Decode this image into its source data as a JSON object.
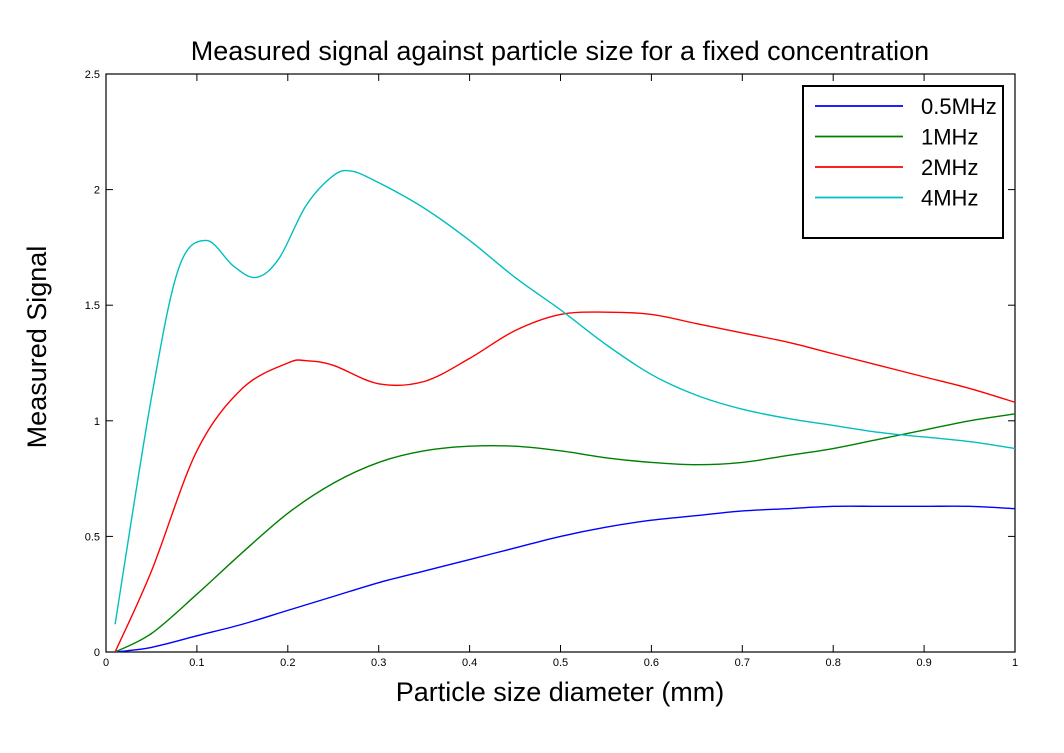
{
  "chart_data": {
    "type": "line",
    "title": "Measured signal against particle size for a fixed concentration",
    "xlabel": "Particle size diameter (mm)",
    "ylabel": "Measured Signal",
    "xlim": [
      0,
      1
    ],
    "ylim": [
      0,
      2.5
    ],
    "x_ticks": [
      0,
      0.1,
      0.2,
      0.3,
      0.4,
      0.5,
      0.6,
      0.7,
      0.8,
      0.9,
      1
    ],
    "x_tick_labels": [
      "0",
      "0.1",
      "0.2",
      "0.3",
      "0.4",
      "0.5",
      "0.6",
      "0.7",
      "0.8",
      "0.9",
      "1"
    ],
    "y_ticks": [
      0,
      0.5,
      1,
      1.5,
      2,
      2.5
    ],
    "y_tick_labels": [
      "0",
      "0.5",
      "1",
      "1.5",
      "2",
      "2.5"
    ],
    "grid": false,
    "legend_position": "top-right",
    "series": [
      {
        "name": "0.5MHz",
        "color": "#0000ff",
        "x": [
          0.01,
          0.05,
          0.1,
          0.15,
          0.2,
          0.25,
          0.3,
          0.35,
          0.4,
          0.45,
          0.5,
          0.55,
          0.6,
          0.65,
          0.7,
          0.75,
          0.8,
          0.85,
          0.9,
          0.95,
          1.0
        ],
        "y": [
          0.0,
          0.02,
          0.07,
          0.12,
          0.18,
          0.24,
          0.3,
          0.35,
          0.4,
          0.45,
          0.5,
          0.54,
          0.57,
          0.59,
          0.61,
          0.62,
          0.63,
          0.63,
          0.63,
          0.63,
          0.62
        ]
      },
      {
        "name": "1MHz",
        "color": "#008000",
        "x": [
          0.01,
          0.05,
          0.1,
          0.15,
          0.2,
          0.25,
          0.3,
          0.35,
          0.4,
          0.45,
          0.5,
          0.55,
          0.6,
          0.65,
          0.7,
          0.75,
          0.8,
          0.85,
          0.9,
          0.95,
          1.0
        ],
        "y": [
          0.0,
          0.08,
          0.25,
          0.43,
          0.6,
          0.73,
          0.82,
          0.87,
          0.89,
          0.89,
          0.87,
          0.84,
          0.82,
          0.81,
          0.82,
          0.85,
          0.88,
          0.92,
          0.96,
          1.0,
          1.03
        ]
      },
      {
        "name": "2MHz",
        "color": "#ff0000",
        "x": [
          0.01,
          0.05,
          0.1,
          0.15,
          0.2,
          0.22,
          0.25,
          0.3,
          0.35,
          0.4,
          0.45,
          0.5,
          0.55,
          0.6,
          0.65,
          0.7,
          0.75,
          0.8,
          0.85,
          0.9,
          0.95,
          1.0
        ],
        "y": [
          0.0,
          0.35,
          0.87,
          1.14,
          1.25,
          1.26,
          1.24,
          1.16,
          1.17,
          1.27,
          1.39,
          1.46,
          1.47,
          1.46,
          1.42,
          1.38,
          1.34,
          1.29,
          1.24,
          1.19,
          1.14,
          1.08
        ]
      },
      {
        "name": "4MHz",
        "color": "#00bfbf",
        "x": [
          0.01,
          0.05,
          0.08,
          0.11,
          0.14,
          0.165,
          0.19,
          0.22,
          0.25,
          0.27,
          0.3,
          0.35,
          0.4,
          0.45,
          0.5,
          0.55,
          0.6,
          0.65,
          0.7,
          0.75,
          0.8,
          0.85,
          0.9,
          0.95,
          1.0
        ],
        "y": [
          0.12,
          1.1,
          1.66,
          1.78,
          1.67,
          1.62,
          1.7,
          1.93,
          2.06,
          2.08,
          2.03,
          1.92,
          1.78,
          1.62,
          1.48,
          1.33,
          1.2,
          1.11,
          1.05,
          1.01,
          0.98,
          0.95,
          0.93,
          0.91,
          0.88
        ]
      }
    ]
  }
}
